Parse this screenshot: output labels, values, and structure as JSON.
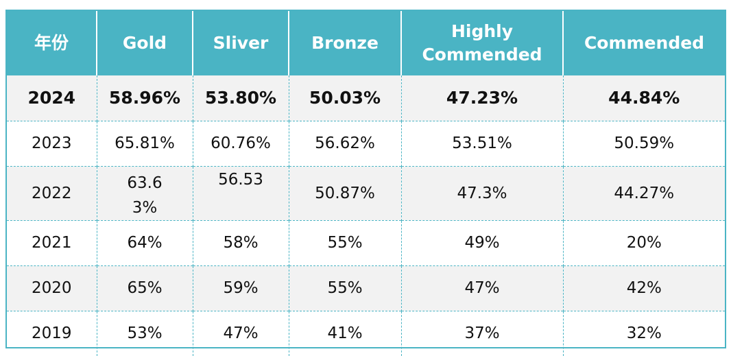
{
  "table": {
    "headers": [
      "年份",
      "Gold",
      "Sliver",
      "Bronze",
      "Highly Commended",
      "Commended"
    ],
    "rows": [
      [
        "2024",
        "58.96%",
        "53.80%",
        "50.03%",
        "47.23%",
        "44.84%"
      ],
      [
        "2023",
        "65.81%",
        "60.76%",
        "56.62%",
        "53.51%",
        "50.59%"
      ],
      [
        "2022",
        "63.63%",
        "56.53",
        "50.87%",
        "47.3%",
        "44.27%"
      ],
      [
        "2021",
        "64%",
        "58%",
        "55%",
        "49%",
        "20%"
      ],
      [
        "2020",
        "65%",
        "59%",
        "55%",
        "47%",
        "42%"
      ],
      [
        "2019",
        "53%",
        "47%",
        "41%",
        "37%",
        "32%"
      ]
    ]
  },
  "colors": {
    "header_bg": "#4ab4c4",
    "header_text": "#ffffff",
    "row_shade": "#f2f2f2",
    "border": "#4ab4c4"
  }
}
